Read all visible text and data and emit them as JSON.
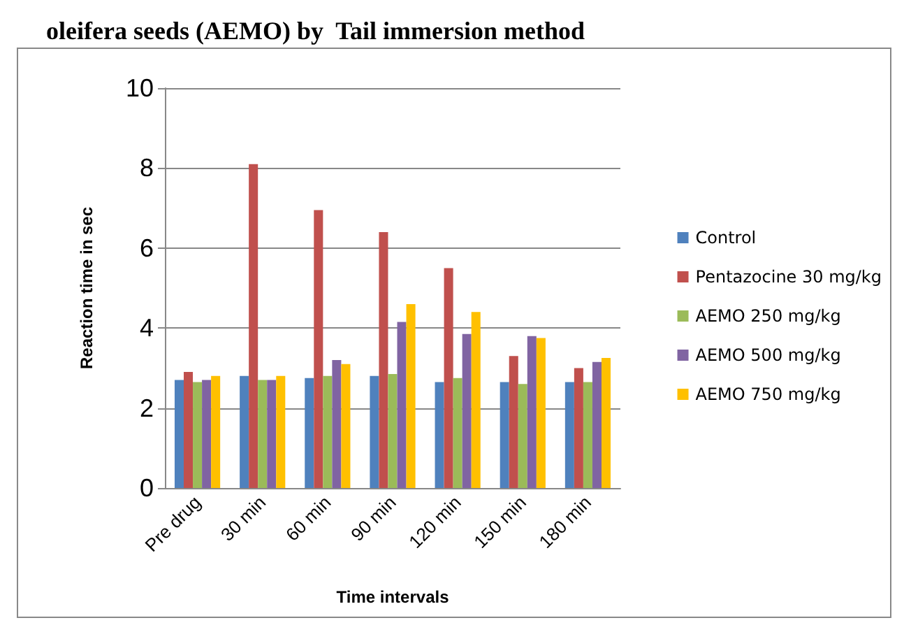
{
  "chart_data": {
    "type": "bar",
    "title": "oleifera seeds (AEMO) by  Tail immersion method",
    "xlabel": "Time intervals",
    "ylabel": "Reaction time in sec",
    "categories": [
      "Pre drug",
      "30 min",
      "60 min",
      "90 min",
      "120 min",
      "150 min",
      "180 min"
    ],
    "series": [
      {
        "name": "Control",
        "color": "#4f81bd",
        "values": [
          2.7,
          2.8,
          2.75,
          2.8,
          2.65,
          2.65,
          2.65
        ]
      },
      {
        "name": "Pentazocine 30 mg/kg",
        "color": "#c0504d",
        "values": [
          2.9,
          8.1,
          6.95,
          6.4,
          5.5,
          3.3,
          3.0
        ]
      },
      {
        "name": "AEMO 250 mg/kg",
        "color": "#9bbb59",
        "values": [
          2.65,
          2.7,
          2.8,
          2.85,
          2.75,
          2.6,
          2.65
        ]
      },
      {
        "name": "AEMO 500 mg/kg",
        "color": "#8064a2",
        "values": [
          2.7,
          2.7,
          3.2,
          4.15,
          3.85,
          3.8,
          3.15
        ]
      },
      {
        "name": "AEMO 750 mg/kg",
        "color": "#ffc000",
        "values": [
          2.8,
          2.8,
          3.1,
          4.6,
          4.4,
          3.75,
          3.25
        ]
      }
    ],
    "ylim": [
      0,
      10
    ],
    "yticks": [
      0,
      2,
      4,
      6,
      8,
      10
    ],
    "grid": "y",
    "legend": "right"
  }
}
